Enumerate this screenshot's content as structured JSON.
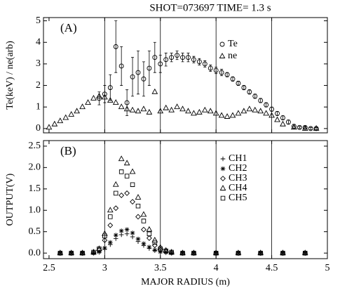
{
  "chart_data": [
    {
      "type": "scatter",
      "title": "SHOT=073697 TIME= 1.3 s",
      "panel_label": "(A)",
      "ylabel": "Te(keV) / ne(arb)",
      "xlim": [
        2.45,
        5.0
      ],
      "xticks": [
        2.5,
        3.0,
        3.5,
        4.0,
        4.5,
        5.0
      ],
      "show_xtick_labels": false,
      "ylim": [
        -0.2,
        5.15
      ],
      "yticks": [
        0,
        1,
        2,
        3,
        4,
        5
      ],
      "grid": "x",
      "series": [
        {
          "name": "Te",
          "color": "#000000",
          "marker": "circle",
          "x": [
            2.95,
            3.0,
            3.05,
            3.1,
            3.15,
            3.2,
            3.25,
            3.3,
            3.35,
            3.4,
            3.45,
            3.5,
            3.55,
            3.6,
            3.65,
            3.7,
            3.75,
            3.8,
            3.85,
            3.9,
            3.95,
            4.0,
            4.05,
            4.1,
            4.15,
            4.2,
            4.25,
            4.3,
            4.35,
            4.4,
            4.45,
            4.5,
            4.55,
            4.6,
            4.65,
            4.7,
            4.75,
            4.8,
            4.85,
            4.9
          ],
          "values": [
            1.4,
            1.6,
            1.9,
            3.8,
            2.9,
            1.2,
            2.4,
            2.6,
            2.3,
            2.8,
            3.3,
            3.0,
            3.2,
            3.3,
            3.4,
            3.3,
            3.3,
            3.2,
            3.1,
            3.0,
            2.8,
            2.7,
            2.6,
            2.5,
            2.3,
            2.1,
            1.9,
            1.7,
            1.5,
            1.3,
            1.1,
            0.9,
            0.7,
            0.5,
            0.3,
            0.1,
            0.05,
            0.05,
            0.0,
            0.0
          ],
          "errors": [
            0.3,
            0.4,
            0.6,
            1.2,
            0.9,
            0.6,
            0.9,
            1.0,
            0.8,
            0.8,
            0.7,
            0.4,
            0.3,
            0.2,
            0.2,
            0.2,
            0.2,
            0.15,
            0.15,
            0.15,
            0.15,
            0.15,
            0.15,
            0.1,
            0.1,
            0.1,
            0.1,
            0.1,
            0.1,
            0.1,
            0.1,
            0.1,
            0.1,
            0.1,
            0.1,
            0.1,
            0.05,
            0.05,
            0.05,
            0.05
          ]
        },
        {
          "name": "ne",
          "color": "#000000",
          "marker": "triangle",
          "x": [
            2.5,
            2.55,
            2.6,
            2.65,
            2.7,
            2.75,
            2.8,
            2.85,
            2.9,
            2.95,
            3.0,
            3.05,
            3.1,
            3.15,
            3.2,
            3.25,
            3.3,
            3.35,
            3.4,
            3.45,
            3.5,
            3.55,
            3.6,
            3.65,
            3.7,
            3.75,
            3.8,
            3.85,
            3.9,
            3.95,
            4.0,
            4.05,
            4.1,
            4.15,
            4.2,
            4.25,
            4.3,
            4.35,
            4.4,
            4.45,
            4.5,
            4.55,
            4.6,
            4.7,
            4.8,
            4.9
          ],
          "values": [
            0.05,
            0.2,
            0.35,
            0.5,
            0.65,
            0.8,
            1.0,
            1.2,
            1.4,
            1.5,
            1.45,
            1.3,
            1.2,
            1.0,
            0.9,
            0.85,
            0.8,
            0.9,
            0.75,
            1.7,
            0.8,
            0.95,
            0.85,
            1.0,
            0.9,
            0.8,
            0.7,
            0.75,
            0.85,
            0.8,
            0.7,
            0.6,
            0.55,
            0.6,
            0.7,
            0.8,
            0.9,
            0.85,
            0.8,
            0.7,
            0.6,
            0.4,
            0.2,
            0.05,
            0.0,
            0.0
          ]
        }
      ]
    },
    {
      "type": "scatter",
      "panel_label": "(B)",
      "ylabel": "OUTPUT(V)",
      "xlabel": "MAJOR RADIUS (m)",
      "xlim": [
        2.45,
        5.0
      ],
      "xticks": [
        2.5,
        3.0,
        3.5,
        4.0,
        4.5,
        5.0
      ],
      "show_xtick_labels": true,
      "ylim": [
        -0.13,
        2.63
      ],
      "yticks": [
        {
          "value": 0,
          "label": "0.0"
        },
        0.5,
        {
          "value": 1,
          "label": "1.0"
        },
        1.5,
        {
          "value": 2,
          "label": "2.0"
        },
        2.5
      ],
      "grid": "x",
      "x": [
        2.6,
        2.7,
        2.8,
        2.9,
        2.95,
        3.0,
        3.05,
        3.1,
        3.15,
        3.2,
        3.25,
        3.3,
        3.35,
        3.4,
        3.45,
        3.5,
        3.55,
        3.6,
        3.7,
        3.8,
        4.0,
        4.2,
        4.4,
        4.6,
        4.8
      ],
      "series": [
        {
          "name": "CH1",
          "color": "#000000",
          "marker": "plus",
          "values": [
            0,
            0,
            0,
            0,
            0.02,
            0.09,
            0.2,
            0.34,
            0.43,
            0.45,
            0.38,
            0.27,
            0.18,
            0.11,
            0.06,
            0.03,
            0.01,
            0,
            0,
            0,
            0,
            0,
            0,
            0,
            0
          ]
        },
        {
          "name": "CH2",
          "color": "#000000",
          "marker": "asterisk",
          "values": [
            0,
            0,
            0,
            0,
            0.03,
            0.12,
            0.25,
            0.42,
            0.52,
            0.55,
            0.47,
            0.33,
            0.22,
            0.14,
            0.07,
            0.03,
            0.02,
            0,
            0,
            0,
            0,
            0,
            0,
            0,
            0
          ]
        },
        {
          "name": "CH3",
          "color": "#000000",
          "marker": "diamond",
          "values": [
            0,
            0,
            0,
            0.01,
            0.07,
            0.3,
            0.65,
            1.05,
            1.35,
            1.4,
            1.2,
            0.85,
            0.55,
            0.35,
            0.18,
            0.08,
            0.04,
            0.01,
            0,
            0,
            0,
            0,
            0,
            0,
            0
          ]
        },
        {
          "name": "CH4",
          "color": "#000000",
          "marker": "triangle",
          "values": [
            0,
            0,
            0,
            0.02,
            0.1,
            0.45,
            1.0,
            1.6,
            2.2,
            2.1,
            1.9,
            1.3,
            0.9,
            0.55,
            0.3,
            0.13,
            0.06,
            0.02,
            0,
            0,
            0,
            0,
            0,
            0,
            0
          ]
        },
        {
          "name": "CH5",
          "color": "#000000",
          "marker": "square",
          "values": [
            0,
            0,
            0,
            0.02,
            0.1,
            0.4,
            0.85,
            1.4,
            1.9,
            1.8,
            1.6,
            1.1,
            0.75,
            0.45,
            0.25,
            0.1,
            0.05,
            0.02,
            0,
            0,
            0,
            0,
            0,
            0,
            0
          ]
        }
      ]
    }
  ]
}
